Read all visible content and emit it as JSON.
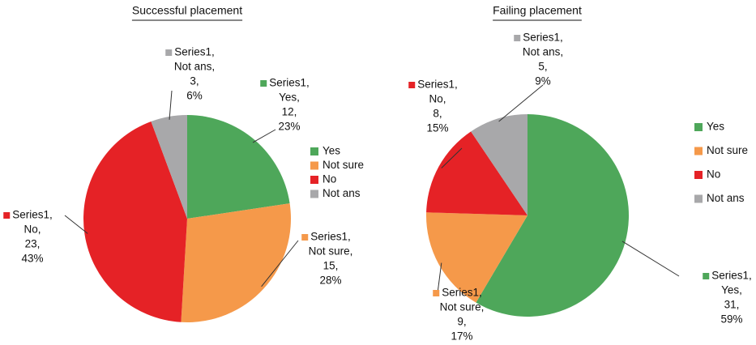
{
  "chart_data": [
    {
      "type": "pie",
      "title": "Successful placement",
      "categories": [
        "Yes",
        "Not sure",
        "No",
        "Not ans"
      ],
      "values": [
        12,
        15,
        23,
        3
      ],
      "value_labels": [
        [
          "Series1,",
          "Yes,",
          "12,",
          "23%"
        ],
        [
          "Series1,",
          "Not sure,",
          "15,",
          "28%"
        ],
        [
          "Series1,",
          "No,",
          "23,",
          "43%"
        ],
        [
          "Series1,",
          "Not ans,",
          "3,",
          "6%"
        ]
      ],
      "colors": [
        "#4ea75a",
        "#f5994a",
        "#e52226",
        "#a8a8aa"
      ],
      "legend": "right"
    },
    {
      "type": "pie",
      "title": "Failing placement",
      "categories": [
        "Yes",
        "Not sure",
        "No",
        "Not ans"
      ],
      "values": [
        31,
        9,
        8,
        5
      ],
      "value_labels": [
        [
          "Series1,",
          "Yes,",
          "31,",
          "59%"
        ],
        [
          "Series1,",
          "Not sure,",
          "9,",
          "17%"
        ],
        [
          "Series1,",
          "No,",
          "8,",
          "15%"
        ],
        [
          "Series1,",
          "Not ans,",
          "5,",
          "9%"
        ]
      ],
      "colors": [
        "#4ea75a",
        "#f5994a",
        "#e52226",
        "#a8a8aa"
      ],
      "legend": "right"
    }
  ]
}
